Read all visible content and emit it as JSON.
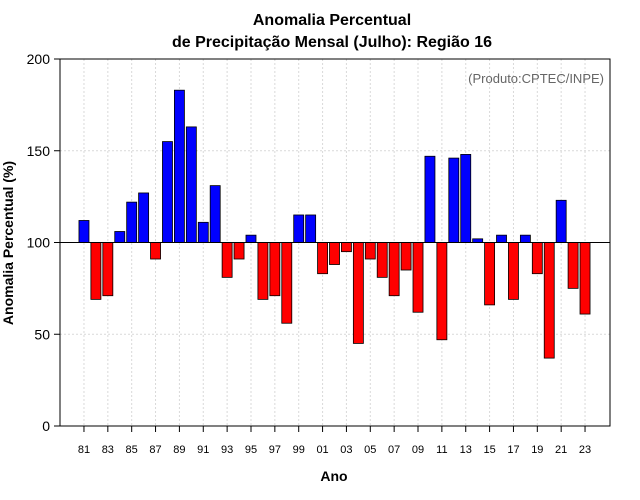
{
  "chart_data": {
    "type": "bar",
    "title_line1": "Anomalia Percentual",
    "title_line2": "de Precipitação Mensal (Julho): Região 16",
    "xlabel": "Ano",
    "ylabel": "Anomalia Percentual (%)",
    "annotation": "(Produto:CPTEC/INPE)",
    "baseline": 100,
    "ylim": [
      0,
      200
    ],
    "yticks": [
      0,
      50,
      100,
      150,
      200
    ],
    "ytick_labels": [
      "0",
      "50",
      "100",
      "150",
      "200"
    ],
    "grid": true,
    "categories": [
      "81",
      "82",
      "83",
      "84",
      "85",
      "86",
      "87",
      "88",
      "89",
      "90",
      "91",
      "92",
      "93",
      "94",
      "95",
      "96",
      "97",
      "98",
      "99",
      "00",
      "01",
      "02",
      "03",
      "04",
      "05",
      "06",
      "07",
      "08",
      "09",
      "10",
      "11",
      "12",
      "13",
      "14",
      "15",
      "16",
      "17",
      "18",
      "19",
      "20",
      "21",
      "22",
      "23"
    ],
    "values": [
      112,
      69,
      71,
      106,
      122,
      127,
      91,
      155,
      183,
      163,
      111,
      131,
      81,
      91,
      104,
      69,
      71,
      56,
      115,
      115,
      83,
      88,
      95,
      45,
      91,
      81,
      71,
      85,
      62,
      147,
      47,
      146,
      148,
      102,
      66,
      104,
      69,
      104,
      83,
      37,
      123,
      75,
      61
    ],
    "xtick_labels": [
      "81",
      "83",
      "85",
      "87",
      "89",
      "91",
      "93",
      "95",
      "97",
      "99",
      "01",
      "03",
      "05",
      "07",
      "09",
      "11",
      "13",
      "15",
      "17",
      "19",
      "21",
      "23"
    ],
    "colors": {
      "above": "#0000ff",
      "below": "#ff0000",
      "grid": "#d9d9d9",
      "axis": "#000000",
      "annotation": "#666666"
    }
  }
}
